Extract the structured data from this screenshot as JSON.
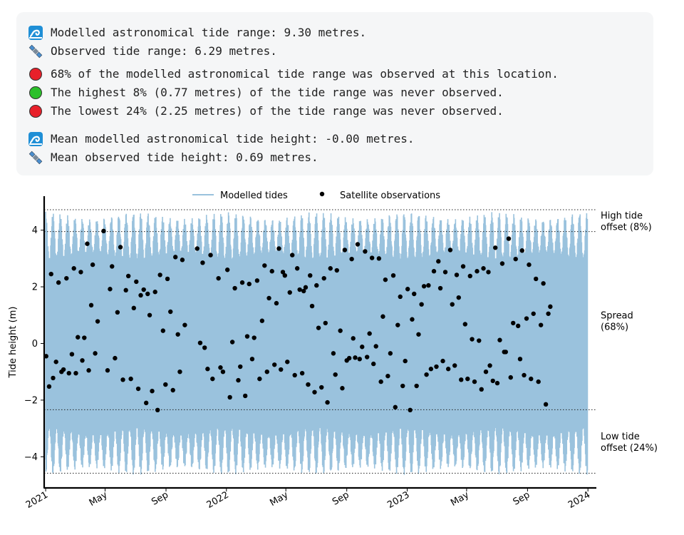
{
  "summary": {
    "lines": [
      {
        "icon": "wave-icon",
        "text": "Modelled astronomical tide range: 9.30 metres."
      },
      {
        "icon": "satellite-icon",
        "text": "Observed tide range: 6.29 metres."
      },
      {
        "icon": "red-circle-icon",
        "color": "#e8202a",
        "text": "68% of the modelled astronomical tide range was observed at this location."
      },
      {
        "icon": "green-circle-icon",
        "color": "#2bc02b",
        "text": "The highest 8% (0.77 metres) of the tide range was never observed."
      },
      {
        "icon": "red-circle-icon",
        "color": "#e8202a",
        "text": "The lowest 24% (2.25 metres) of the tide range was never observed."
      },
      {
        "icon": "wave-icon",
        "text": "Mean modelled astronomical tide height: -0.00 metres."
      },
      {
        "icon": "satellite-icon",
        "text": "Mean observed tide height: 0.69 metres."
      }
    ]
  },
  "chart_data": {
    "type": "line",
    "ylabel": "Tide height (m)",
    "ylim": [
      -5.1,
      5.2
    ],
    "xlim": [
      "2020-12-29",
      "2024-01-18"
    ],
    "x_ticks": [
      {
        "label": "2021",
        "date": "2021-01-01"
      },
      {
        "label": "May",
        "date": "2021-05-01"
      },
      {
        "label": "Sep",
        "date": "2021-09-01"
      },
      {
        "label": "2022",
        "date": "2022-01-01"
      },
      {
        "label": "May",
        "date": "2022-05-01"
      },
      {
        "label": "Sep",
        "date": "2022-09-01"
      },
      {
        "label": "2023",
        "date": "2023-01-01"
      },
      {
        "label": "May",
        "date": "2023-05-01"
      },
      {
        "label": "Sep",
        "date": "2023-09-01"
      },
      {
        "label": "2024",
        "date": "2024-01-01"
      }
    ],
    "y_ticks": [
      -4,
      -2,
      0,
      2,
      4
    ],
    "legend": {
      "position": "top-center",
      "items": [
        {
          "label": "Modelled tides",
          "color": "#9ac2dd",
          "marker": "line"
        },
        {
          "label": "Satellite observations",
          "color": "#000000",
          "marker": "dot"
        }
      ]
    },
    "modelled_tides": {
      "name": "Modelled tides",
      "color": "#9ac2dd",
      "start": "2021-01-01",
      "end": "2023-12-31",
      "min": -4.65,
      "max": 4.65,
      "spring_neap_amplitude_range": [
        3.0,
        4.65
      ]
    },
    "reference_lines": [
      {
        "y": 4.72,
        "style": "dotted"
      },
      {
        "y": 3.95,
        "style": "dotted"
      },
      {
        "y": -2.34,
        "style": "dotted"
      },
      {
        "y": -4.58,
        "style": "dotted"
      }
    ],
    "annotations": [
      {
        "text_lines": [
          "High tide",
          "offset (8%)"
        ],
        "y": 4.33
      },
      {
        "text_lines": [
          "Spread",
          "(68%)"
        ],
        "y": 0.8
      },
      {
        "text_lines": [
          "Low tide",
          "offset (24%)"
        ],
        "y": -3.46
      }
    ],
    "observations": {
      "name": "Satellite observations",
      "color": "#000000",
      "points": [
        [
          "2021-01-02",
          -0.45
        ],
        [
          "2021-01-08",
          -1.52
        ],
        [
          "2021-01-12",
          2.45
        ],
        [
          "2021-01-16",
          -1.22
        ],
        [
          "2021-01-22",
          -0.65
        ],
        [
          "2021-01-27",
          2.15
        ],
        [
          "2021-02-02",
          -1.0
        ],
        [
          "2021-02-06",
          -0.92
        ],
        [
          "2021-02-12",
          2.3
        ],
        [
          "2021-02-17",
          -1.05
        ],
        [
          "2021-02-23",
          -0.38
        ],
        [
          "2021-02-27",
          2.65
        ],
        [
          "2021-03-03",
          -1.05
        ],
        [
          "2021-03-07",
          0.22
        ],
        [
          "2021-03-13",
          2.52
        ],
        [
          "2021-03-16",
          -0.6
        ],
        [
          "2021-03-20",
          0.2
        ],
        [
          "2021-03-26",
          3.52
        ],
        [
          "2021-03-29",
          -0.95
        ],
        [
          "2021-04-03",
          1.35
        ],
        [
          "2021-04-06",
          2.78
        ],
        [
          "2021-04-11",
          -0.35
        ],
        [
          "2021-04-16",
          0.78
        ],
        [
          "2021-04-28",
          3.97
        ],
        [
          "2021-05-06",
          -0.95
        ],
        [
          "2021-05-11",
          1.92
        ],
        [
          "2021-05-15",
          2.72
        ],
        [
          "2021-05-21",
          -0.52
        ],
        [
          "2021-05-26",
          1.1
        ],
        [
          "2021-06-01",
          3.4
        ],
        [
          "2021-06-06",
          -1.28
        ],
        [
          "2021-06-12",
          1.88
        ],
        [
          "2021-06-17",
          2.38
        ],
        [
          "2021-06-22",
          -1.25
        ],
        [
          "2021-06-28",
          1.25
        ],
        [
          "2021-07-03",
          2.18
        ],
        [
          "2021-07-07",
          -1.6
        ],
        [
          "2021-07-12",
          1.7
        ],
        [
          "2021-07-18",
          1.9
        ],
        [
          "2021-07-23",
          -2.1
        ],
        [
          "2021-07-26",
          1.75
        ],
        [
          "2021-07-30",
          1.0
        ],
        [
          "2021-08-04",
          -1.68
        ],
        [
          "2021-08-10",
          1.82
        ],
        [
          "2021-08-15",
          -2.35
        ],
        [
          "2021-08-20",
          2.42
        ],
        [
          "2021-08-26",
          0.45
        ],
        [
          "2021-08-31",
          -1.45
        ],
        [
          "2021-09-04",
          2.28
        ],
        [
          "2021-09-10",
          1.12
        ],
        [
          "2021-09-15",
          -1.65
        ],
        [
          "2021-09-20",
          3.05
        ],
        [
          "2021-09-25",
          0.32
        ],
        [
          "2021-09-29",
          -1.0
        ],
        [
          "2021-10-04",
          2.95
        ],
        [
          "2021-10-09",
          0.65
        ],
        [
          "2021-11-03",
          3.35
        ],
        [
          "2021-11-09",
          0.02
        ],
        [
          "2021-11-14",
          2.85
        ],
        [
          "2021-11-18",
          -0.15
        ],
        [
          "2021-11-24",
          -0.9
        ],
        [
          "2021-11-30",
          3.12
        ],
        [
          "2021-12-04",
          -1.25
        ],
        [
          "2021-12-16",
          2.3
        ],
        [
          "2021-12-20",
          -0.85
        ],
        [
          "2021-12-25",
          -1.0
        ],
        [
          "2022-01-03",
          2.6
        ],
        [
          "2022-01-08",
          -1.9
        ],
        [
          "2022-01-13",
          0.05
        ],
        [
          "2022-01-18",
          1.95
        ],
        [
          "2022-01-25",
          -1.3
        ],
        [
          "2022-01-29",
          -0.82
        ],
        [
          "2022-02-02",
          2.15
        ],
        [
          "2022-02-08",
          -1.85
        ],
        [
          "2022-02-12",
          0.25
        ],
        [
          "2022-02-16",
          2.1
        ],
        [
          "2022-02-22",
          -0.55
        ],
        [
          "2022-02-26",
          0.2
        ],
        [
          "2022-03-04",
          2.22
        ],
        [
          "2022-03-09",
          -1.25
        ],
        [
          "2022-03-14",
          0.8
        ],
        [
          "2022-03-19",
          2.75
        ],
        [
          "2022-03-24",
          -1.0
        ],
        [
          "2022-03-28",
          1.6
        ],
        [
          "2022-04-03",
          2.55
        ],
        [
          "2022-04-08",
          -0.75
        ],
        [
          "2022-04-12",
          1.42
        ],
        [
          "2022-04-17",
          3.35
        ],
        [
          "2022-04-21",
          -0.92
        ],
        [
          "2022-04-25",
          2.52
        ],
        [
          "2022-04-29",
          2.4
        ],
        [
          "2022-05-04",
          -0.65
        ],
        [
          "2022-05-09",
          1.8
        ],
        [
          "2022-05-14",
          3.12
        ],
        [
          "2022-05-19",
          -1.12
        ],
        [
          "2022-05-24",
          2.65
        ],
        [
          "2022-05-29",
          1.9
        ],
        [
          "2022-06-03",
          -1.05
        ],
        [
          "2022-06-06",
          1.85
        ],
        [
          "2022-06-10",
          1.98
        ],
        [
          "2022-06-15",
          -1.45
        ],
        [
          "2022-06-19",
          2.4
        ],
        [
          "2022-06-23",
          1.32
        ],
        [
          "2022-06-28",
          -1.72
        ],
        [
          "2022-07-02",
          2.05
        ],
        [
          "2022-07-06",
          0.55
        ],
        [
          "2022-07-12",
          -1.55
        ],
        [
          "2022-07-17",
          2.3
        ],
        [
          "2022-07-20",
          0.72
        ],
        [
          "2022-07-24",
          -2.08
        ],
        [
          "2022-07-30",
          2.65
        ],
        [
          "2022-08-05",
          -0.35
        ],
        [
          "2022-08-09",
          -1.1
        ],
        [
          "2022-08-12",
          2.58
        ],
        [
          "2022-08-19",
          0.45
        ],
        [
          "2022-08-23",
          -1.58
        ],
        [
          "2022-08-28",
          3.3
        ],
        [
          "2022-09-01",
          -0.6
        ],
        [
          "2022-09-06",
          -0.52
        ],
        [
          "2022-09-11",
          2.98
        ],
        [
          "2022-09-14",
          0.18
        ],
        [
          "2022-09-18",
          -0.5
        ],
        [
          "2022-09-23",
          3.5
        ],
        [
          "2022-09-27",
          -0.55
        ],
        [
          "2022-10-02",
          -0.12
        ],
        [
          "2022-10-08",
          3.25
        ],
        [
          "2022-10-12",
          -0.48
        ],
        [
          "2022-10-17",
          0.35
        ],
        [
          "2022-10-22",
          3.02
        ],
        [
          "2022-10-25",
          -0.72
        ],
        [
          "2022-10-30",
          -0.1
        ],
        [
          "2022-11-05",
          3.0
        ],
        [
          "2022-11-09",
          -1.35
        ],
        [
          "2022-11-13",
          0.95
        ],
        [
          "2022-11-18",
          2.25
        ],
        [
          "2022-11-23",
          -1.15
        ],
        [
          "2022-11-28",
          -0.35
        ],
        [
          "2022-12-04",
          2.4
        ],
        [
          "2022-12-08",
          -2.25
        ],
        [
          "2022-12-13",
          0.65
        ],
        [
          "2022-12-18",
          1.65
        ],
        [
          "2022-12-23",
          -1.5
        ],
        [
          "2022-12-28",
          -0.62
        ],
        [
          "2023-01-02",
          1.92
        ],
        [
          "2023-01-07",
          -2.35
        ],
        [
          "2023-01-11",
          0.85
        ],
        [
          "2023-01-15",
          1.75
        ],
        [
          "2023-01-20",
          -1.5
        ],
        [
          "2023-01-24",
          0.32
        ],
        [
          "2023-01-30",
          1.38
        ],
        [
          "2023-02-04",
          2.02
        ],
        [
          "2023-02-09",
          -1.1
        ],
        [
          "2023-02-13",
          2.05
        ],
        [
          "2023-02-18",
          -0.9
        ],
        [
          "2023-02-24",
          2.55
        ],
        [
          "2023-03-01",
          -0.82
        ],
        [
          "2023-03-05",
          2.9
        ],
        [
          "2023-03-09",
          1.95
        ],
        [
          "2023-03-14",
          -0.62
        ],
        [
          "2023-03-19",
          2.52
        ],
        [
          "2023-03-25",
          -0.9
        ],
        [
          "2023-03-29",
          3.3
        ],
        [
          "2023-04-02",
          1.38
        ],
        [
          "2023-04-07",
          -0.78
        ],
        [
          "2023-04-11",
          2.42
        ],
        [
          "2023-04-15",
          1.62
        ],
        [
          "2023-04-20",
          -1.28
        ],
        [
          "2023-04-24",
          2.72
        ],
        [
          "2023-04-28",
          0.68
        ],
        [
          "2023-05-03",
          -1.25
        ],
        [
          "2023-05-08",
          2.38
        ],
        [
          "2023-05-12",
          0.15
        ],
        [
          "2023-05-17",
          -1.35
        ],
        [
          "2023-05-22",
          2.55
        ],
        [
          "2023-05-26",
          0.1
        ],
        [
          "2023-05-31",
          -1.62
        ],
        [
          "2023-06-04",
          2.65
        ],
        [
          "2023-06-09",
          -1.0
        ],
        [
          "2023-06-14",
          2.52
        ],
        [
          "2023-06-17",
          -0.78
        ],
        [
          "2023-06-23",
          -1.32
        ],
        [
          "2023-06-28",
          3.38
        ],
        [
          "2023-07-02",
          -1.4
        ],
        [
          "2023-07-07",
          0.12
        ],
        [
          "2023-07-12",
          2.82
        ],
        [
          "2023-07-16",
          -0.3
        ],
        [
          "2023-07-19",
          -0.3
        ],
        [
          "2023-07-25",
          3.7
        ],
        [
          "2023-07-29",
          -1.2
        ],
        [
          "2023-08-03",
          0.72
        ],
        [
          "2023-08-08",
          2.98
        ],
        [
          "2023-08-13",
          0.62
        ],
        [
          "2023-08-17",
          -0.55
        ],
        [
          "2023-08-21",
          3.28
        ],
        [
          "2023-08-25",
          -1.12
        ],
        [
          "2023-08-30",
          0.88
        ],
        [
          "2023-09-04",
          2.78
        ],
        [
          "2023-09-08",
          -1.25
        ],
        [
          "2023-09-13",
          1.05
        ],
        [
          "2023-09-18",
          2.28
        ],
        [
          "2023-09-23",
          -1.35
        ],
        [
          "2023-09-28",
          0.65
        ],
        [
          "2023-10-03",
          2.12
        ],
        [
          "2023-10-08",
          -2.15
        ],
        [
          "2023-10-13",
          1.05
        ],
        [
          "2023-10-17",
          1.3
        ]
      ]
    }
  }
}
